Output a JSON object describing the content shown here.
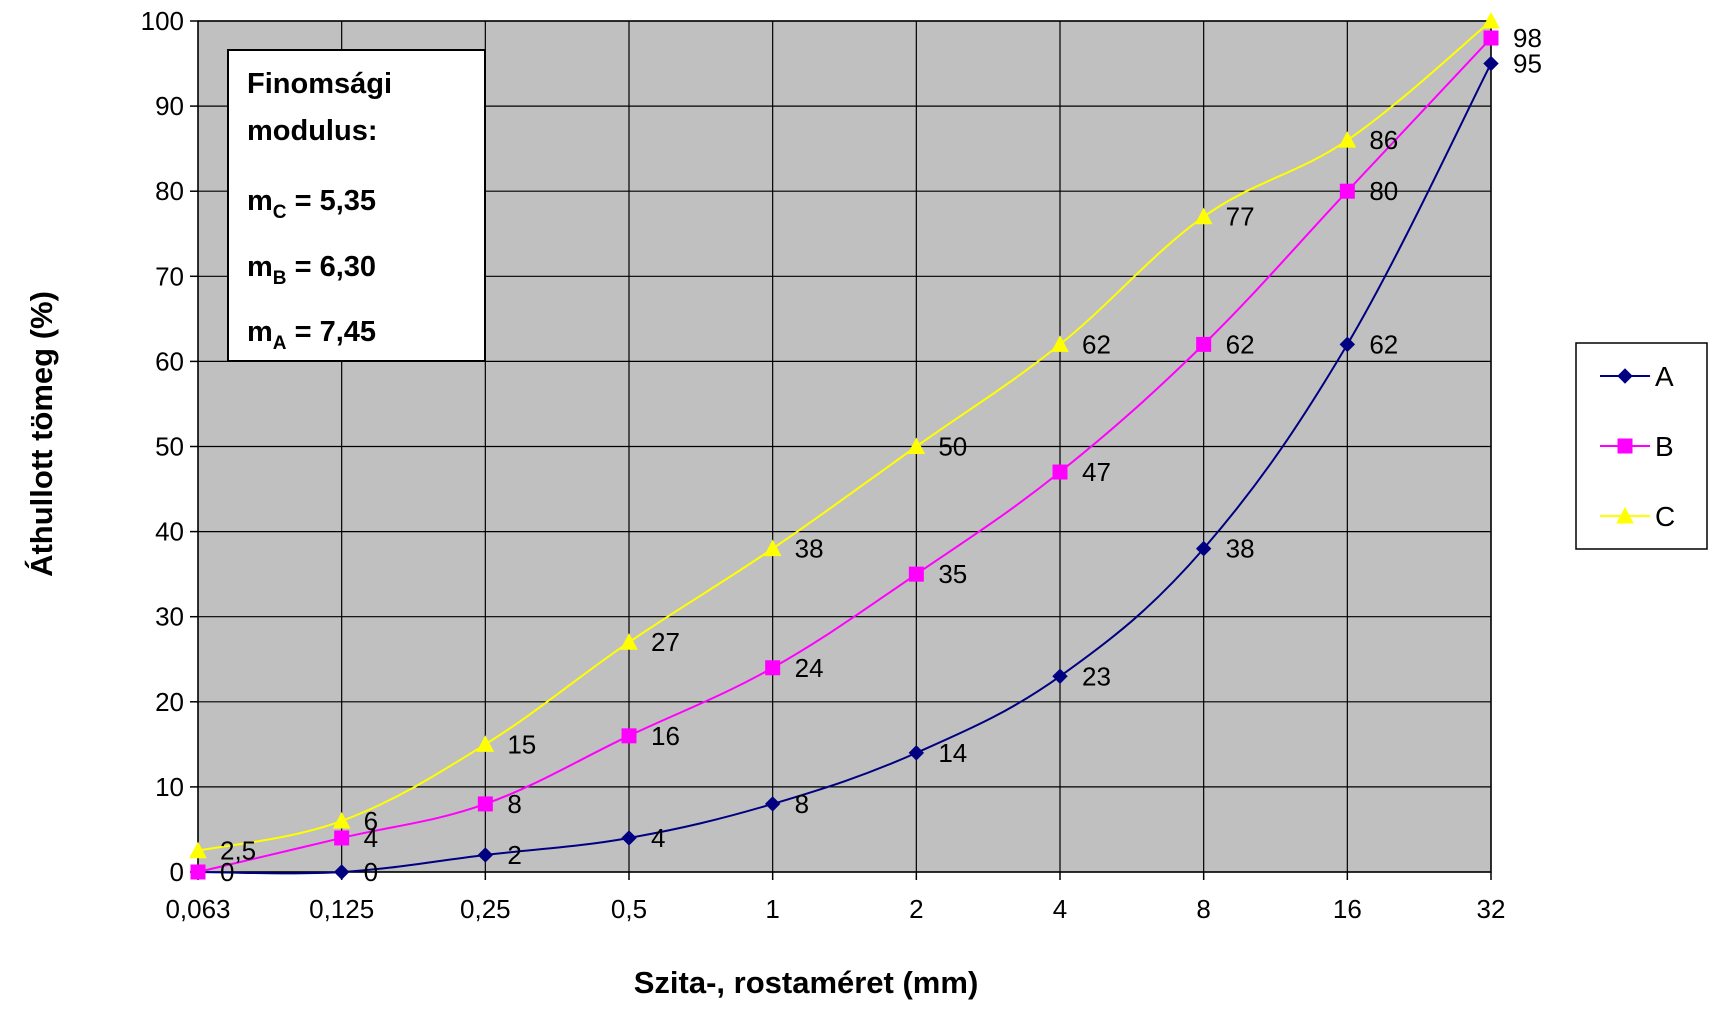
{
  "chart_data": {
    "type": "line",
    "x_categories": [
      "0,063",
      "0,125",
      "0,25",
      "0,5",
      "1",
      "2",
      "4",
      "8",
      "16",
      "32"
    ],
    "xlabel": "Szita-, rostaméret (mm)",
    "ylabel": "Áthullott tömeg (%)",
    "ylim": [
      0,
      100
    ],
    "y_ticks": [
      "0",
      "10",
      "20",
      "30",
      "40",
      "50",
      "60",
      "70",
      "80",
      "90",
      "100"
    ],
    "grid": true,
    "plot_background": "#c0c0c0",
    "legend_position": "right",
    "series": [
      {
        "name": "A",
        "color": "#000080",
        "marker": "diamond",
        "values": [
          0,
          0,
          2,
          4,
          8,
          14,
          23,
          38,
          62,
          95
        ],
        "labels": [
          "",
          "0",
          "2",
          "4",
          "8",
          "14",
          "23",
          "38",
          "62",
          "95"
        ]
      },
      {
        "name": "B",
        "color": "#ff00ff",
        "marker": "square",
        "values": [
          0,
          4,
          8,
          16,
          24,
          35,
          47,
          62,
          80,
          98
        ],
        "labels": [
          "0",
          "4",
          "8",
          "16",
          "24",
          "35",
          "47",
          "62",
          "80",
          "98"
        ]
      },
      {
        "name": "C",
        "color": "#ffff00",
        "marker": "triangle",
        "values": [
          2.5,
          6,
          15,
          27,
          38,
          50,
          62,
          77,
          86,
          100
        ],
        "labels": [
          "2,5",
          "6",
          "15",
          "27",
          "38",
          "50",
          "62",
          "77",
          "86",
          ""
        ]
      }
    ],
    "annotation": {
      "heading_line1": "Finomsági",
      "heading_line2": "modulus:",
      "lines": [
        {
          "prefix": "m",
          "sub": "C",
          "rest": " = 5,35"
        },
        {
          "prefix": "m",
          "sub": "B",
          "rest": " = 6,30"
        },
        {
          "prefix": "m",
          "sub": "A",
          "rest": " = 7,45"
        }
      ]
    }
  }
}
